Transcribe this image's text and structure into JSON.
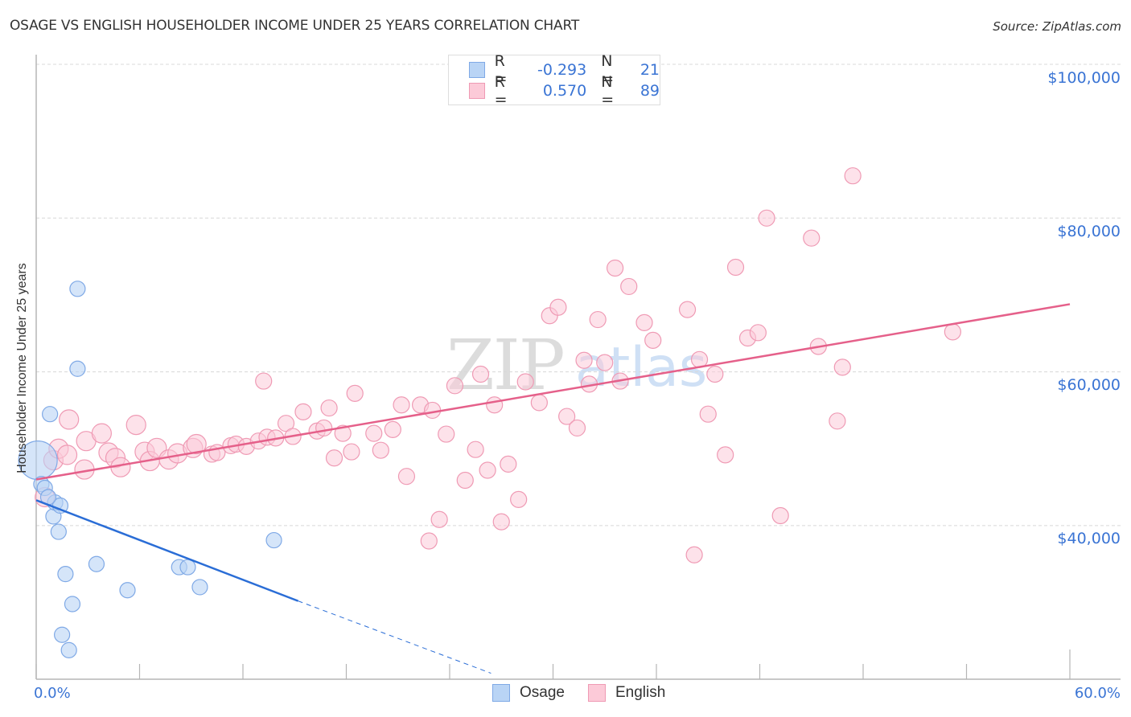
{
  "header": {
    "title": "OSAGE VS ENGLISH HOUSEHOLDER INCOME UNDER 25 YEARS CORRELATION CHART",
    "source": "Source: ZipAtlas.com"
  },
  "watermark": {
    "zip": "ZIP",
    "atlas": "atlas"
  },
  "legend": {
    "rows": [
      {
        "swatch_color": "#b9d4f5",
        "swatch_border": "#7fa9e6",
        "r_label": "R =",
        "r_value": "-0.293",
        "n_label": "N =",
        "n_value": "21"
      },
      {
        "swatch_color": "#fccad8",
        "swatch_border": "#ef9ab4",
        "r_label": "R =",
        "r_value": "0.570",
        "n_label": "N =",
        "n_value": "89"
      }
    ]
  },
  "bottom_legend": [
    {
      "label": "Osage",
      "color": "#b9d4f5",
      "border": "#7fa9e6"
    },
    {
      "label": "English",
      "color": "#fccad8",
      "border": "#ef9ab4"
    }
  ],
  "axes": {
    "y_label": "Householder Income Under 25 years",
    "y_ticks": [
      "$100,000",
      "$80,000",
      "$60,000",
      "$40,000"
    ],
    "x_ticks": [
      "0.0%",
      "60.0%"
    ]
  },
  "colors": {
    "osage": "#7fa9e6",
    "osage_fill": "#b9d4f5",
    "osage_line": "#2a6dd6",
    "english": "#ef9ab4",
    "english_fill": "#fccad8",
    "english_line": "#e5608a",
    "tick_text": "#3a74d4"
  },
  "chart_data": {
    "type": "scatter",
    "title": "OSAGE VS ENGLISH HOUSEHOLDER INCOME UNDER 25 YEARS CORRELATION CHART",
    "xlabel": "",
    "ylabel": "Householder Income Under 25 years",
    "xlim": [
      0,
      60
    ],
    "ylim": [
      22000,
      102000
    ],
    "x_unit": "%",
    "y_unit": "$",
    "grid": true,
    "legend_position": "top-center",
    "series": [
      {
        "name": "Osage",
        "R": -0.293,
        "N": 21,
        "trend": {
          "x0": 0,
          "y0": 43300,
          "x1": 15.2,
          "y1": 30200,
          "dashed_to_x": 26.4,
          "dashed_to_y": 20800
        },
        "points": [
          [
            0.1,
            48500
          ],
          [
            0.3,
            45400
          ],
          [
            0.5,
            44900
          ],
          [
            0.8,
            54500
          ],
          [
            1.0,
            41200
          ],
          [
            1.1,
            43000
          ],
          [
            1.3,
            39200
          ],
          [
            1.4,
            42600
          ],
          [
            1.5,
            25800
          ],
          [
            1.7,
            33700
          ],
          [
            1.9,
            23800
          ],
          [
            2.1,
            29800
          ],
          [
            2.4,
            60400
          ],
          [
            2.4,
            70800
          ],
          [
            3.5,
            35000
          ],
          [
            5.3,
            31600
          ],
          [
            8.3,
            34600
          ],
          [
            8.8,
            34600
          ],
          [
            9.5,
            32000
          ],
          [
            13.8,
            38100
          ],
          [
            0.7,
            43700
          ]
        ]
      },
      {
        "name": "English",
        "R": 0.57,
        "N": 89,
        "trend": {
          "x0": 0,
          "y0": 46000,
          "x1": 60,
          "y1": 68800
        },
        "points": [
          [
            0.5,
            43700
          ],
          [
            1.0,
            48500
          ],
          [
            1.3,
            50000
          ],
          [
            1.8,
            49200
          ],
          [
            1.9,
            53800
          ],
          [
            2.8,
            47300
          ],
          [
            2.9,
            51000
          ],
          [
            3.8,
            52000
          ],
          [
            4.2,
            49500
          ],
          [
            4.6,
            48800
          ],
          [
            4.9,
            47600
          ],
          [
            5.8,
            53100
          ],
          [
            6.3,
            49600
          ],
          [
            6.6,
            48400
          ],
          [
            7.0,
            50100
          ],
          [
            7.7,
            48600
          ],
          [
            8.2,
            49400
          ],
          [
            9.1,
            50100
          ],
          [
            9.3,
            50600
          ],
          [
            10.2,
            49300
          ],
          [
            10.5,
            49500
          ],
          [
            11.3,
            50400
          ],
          [
            11.6,
            50600
          ],
          [
            12.2,
            50300
          ],
          [
            12.9,
            51000
          ],
          [
            13.4,
            51500
          ],
          [
            13.9,
            51400
          ],
          [
            14.5,
            53300
          ],
          [
            14.9,
            51600
          ],
          [
            15.5,
            54800
          ],
          [
            16.3,
            52300
          ],
          [
            16.7,
            52700
          ],
          [
            17.0,
            55300
          ],
          [
            17.3,
            48800
          ],
          [
            17.8,
            52000
          ],
          [
            18.3,
            49600
          ],
          [
            18.5,
            57200
          ],
          [
            19.6,
            52000
          ],
          [
            20.0,
            49800
          ],
          [
            20.7,
            52500
          ],
          [
            21.2,
            55700
          ],
          [
            21.5,
            46400
          ],
          [
            22.3,
            55700
          ],
          [
            22.8,
            38000
          ],
          [
            23.0,
            55000
          ],
          [
            23.4,
            40800
          ],
          [
            23.8,
            51900
          ],
          [
            24.3,
            58200
          ],
          [
            24.9,
            45900
          ],
          [
            25.5,
            49900
          ],
          [
            25.8,
            59700
          ],
          [
            26.2,
            47200
          ],
          [
            26.6,
            55700
          ],
          [
            27.0,
            40500
          ],
          [
            27.4,
            48000
          ],
          [
            28.0,
            43400
          ],
          [
            28.4,
            58700
          ],
          [
            29.2,
            56000
          ],
          [
            29.8,
            67300
          ],
          [
            30.3,
            68400
          ],
          [
            30.8,
            54200
          ],
          [
            31.4,
            52700
          ],
          [
            31.8,
            61500
          ],
          [
            32.1,
            58400
          ],
          [
            32.6,
            66800
          ],
          [
            33.0,
            61200
          ],
          [
            33.6,
            73500
          ],
          [
            33.9,
            58800
          ],
          [
            34.4,
            71100
          ],
          [
            35.3,
            66400
          ],
          [
            35.8,
            64100
          ],
          [
            37.8,
            68100
          ],
          [
            38.2,
            36200
          ],
          [
            38.5,
            61600
          ],
          [
            39.0,
            54500
          ],
          [
            39.4,
            59700
          ],
          [
            40.0,
            49200
          ],
          [
            40.6,
            73600
          ],
          [
            41.3,
            64400
          ],
          [
            41.9,
            65100
          ],
          [
            42.4,
            80000
          ],
          [
            43.2,
            41300
          ],
          [
            45.0,
            77400
          ],
          [
            45.4,
            63300
          ],
          [
            46.5,
            53600
          ],
          [
            46.8,
            60600
          ],
          [
            47.4,
            85500
          ],
          [
            53.2,
            65200
          ],
          [
            13.2,
            58800
          ]
        ]
      }
    ]
  }
}
